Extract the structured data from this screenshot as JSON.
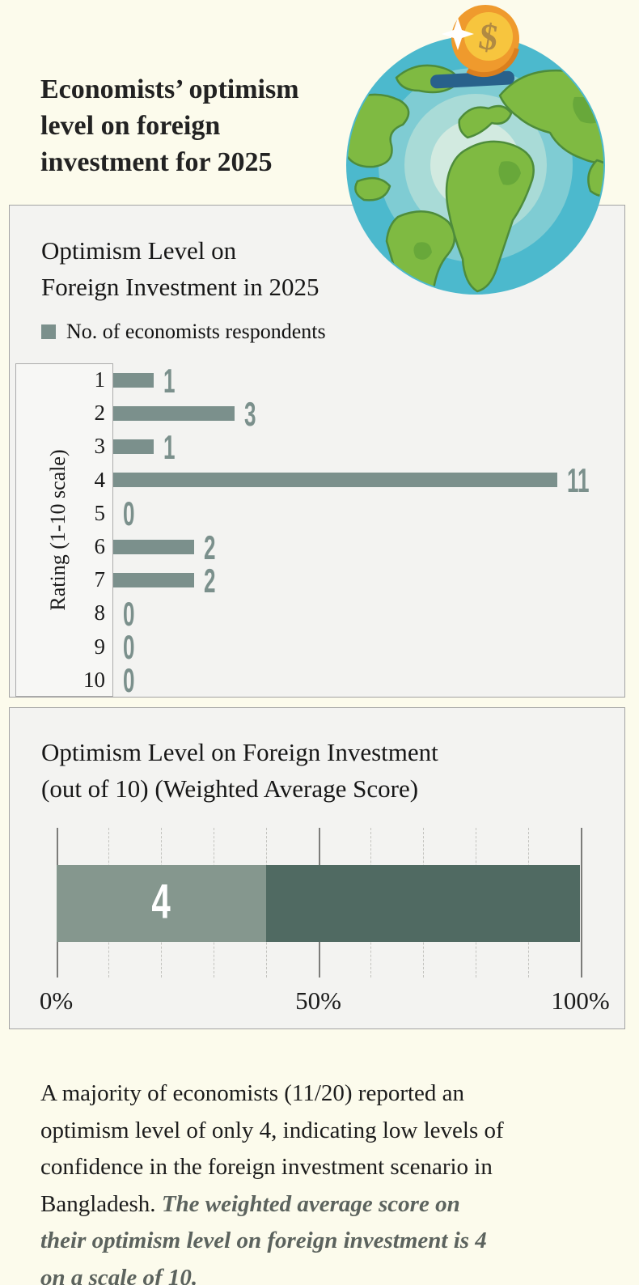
{
  "display": {
    "header_title": "Economists’ optimism\nlevel on foreign\ninvestment for 2025",
    "chart1_title": "Optimism Level on\nForeign Investment in 2025",
    "chart2_title": "Optimism Level on Foreign Investment\n(out of 10) (Weighted Average Score)"
  },
  "footer": {
    "text_black": "A majority of economists (11/20) reported an\noptimism level of only 4, indicating low levels of\nconfidence in the foreign investment scenario in\nBangladesh. ",
    "text_emphasis": "The weighted average score on\ntheir optimism level on foreign investment is 4\non a scale of 10."
  },
  "illustration": {
    "name": "globe-piggy-bank-with-dollar-coin",
    "water_color": "#4cb9cd",
    "ring_colors": [
      "#7fccd3",
      "#a9dbd7",
      "#d2eae0"
    ],
    "continent_color": "#7fba42",
    "continent_shade_color": "#68a83a",
    "slot_color": "#28618b",
    "coin_color": "#ef9a2d",
    "coin_inner_color": "#f7c53e",
    "dollar_color": "#b18a42"
  },
  "chart_data": [
    {
      "type": "bar",
      "orientation": "horizontal",
      "title": "Optimism Level on Foreign Investment in 2025",
      "series_name": "No. of economists respondents",
      "categories": [
        "1",
        "2",
        "3",
        "4",
        "5",
        "6",
        "7",
        "8",
        "9",
        "10"
      ],
      "values": [
        1,
        3,
        1,
        11,
        0,
        2,
        2,
        0,
        0,
        0
      ],
      "ylabel": "Rating (1-10 scale)",
      "xlim": [
        0,
        12.5
      ],
      "bar_color": "#7b908c",
      "value_label_color": "#7b908c",
      "grid": false,
      "legend_position": "top-left"
    },
    {
      "type": "bar",
      "subtype": "single-stacked-100pct",
      "title": "Optimism Level on Foreign Investment (out of 10) (Weighted Average Score)",
      "segments": [
        {
          "label": "4",
          "value_pct": 40,
          "color": "#85978e"
        },
        {
          "label": "",
          "value_pct": 60,
          "color": "#506a62"
        }
      ],
      "x_ticks": [
        {
          "pct": 0,
          "label": "0%"
        },
        {
          "pct": 50,
          "label": "50%"
        },
        {
          "pct": 100,
          "label": "100%"
        }
      ],
      "gridline_step_pct": 10,
      "xlim": [
        0,
        100
      ],
      "grid": "dashed-vertical"
    }
  ]
}
